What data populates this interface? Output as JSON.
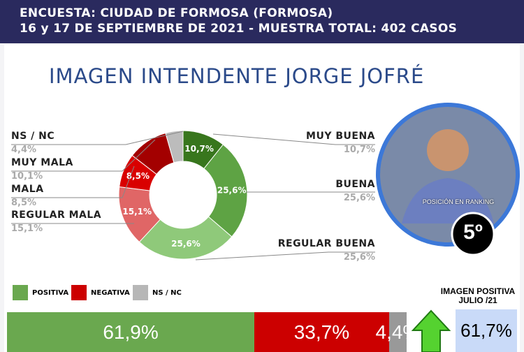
{
  "header": {
    "line1": "ENCUESTA: CIUDAD DE FORMOSA (FORMOSA)",
    "line2": "16 y 17 DE SEPTIEMBRE DE 2021  - MUESTRA TOTAL: 402 CASOS"
  },
  "colors": {
    "header": "#2a2a5e",
    "title": "#2b4a8a",
    "positiva": "#6aa84f",
    "negativa": "#cc0000",
    "nsnc": "#b7b7b7"
  },
  "photo": {
    "ranking_label": "POSICIÓN EN RANKING",
    "ranking": "5º"
  },
  "chart_data": [
    {
      "type": "pie",
      "title": "IMAGEN INTENDENTE JORGE JOFRÉ",
      "donut": true,
      "categories": [
        "MUY BUENA",
        "BUENA",
        "REGULAR BUENA",
        "REGULAR MALA",
        "MALA",
        "MUY MALA",
        "NS / NC"
      ],
      "values": [
        10.7,
        25.6,
        25.6,
        15.1,
        8.5,
        10.1,
        4.4
      ],
      "labels": [
        "10,7%",
        "25,6%",
        "25,6%",
        "15,1%",
        "8,5%",
        "10,1%",
        "4,4%"
      ],
      "colors": [
        "#38761d",
        "#5ea344",
        "#8fc97a",
        "#e06666",
        "#d90000",
        "#a30000",
        "#bcbcbc"
      ]
    },
    {
      "type": "bar",
      "stacked": true,
      "orientation": "horizontal",
      "categories": [
        "POSITIVA",
        "NEGATIVA",
        "NS / NC"
      ],
      "values": [
        61.9,
        33.7,
        4.4
      ],
      "labels": [
        "61,9%",
        "33,7%",
        "4,4%"
      ],
      "colors": [
        "#6aa84f",
        "#cc0000",
        "#999999"
      ]
    }
  ],
  "comparison": {
    "label_line1": "IMAGEN POSITIVA",
    "label_line2": "JULIO /21",
    "value": "61,7%",
    "trend": "up-arrow-icon"
  }
}
